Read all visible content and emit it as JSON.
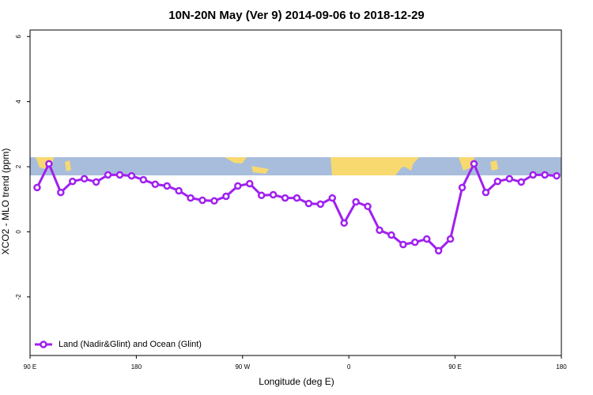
{
  "chart_data": {
    "type": "line",
    "title": "10N-20N May (Ver 9)   2014-09-06 to 2018-12-29",
    "x_label": "Longitude (deg E)",
    "y_label": "XCO2 - MLO trend (ppm)",
    "x": [
      96,
      106,
      116,
      126,
      136,
      146,
      156,
      166,
      176,
      186,
      196,
      206,
      216,
      226,
      236,
      246,
      256,
      266,
      276,
      286,
      296,
      306,
      316,
      326,
      336,
      346,
      356,
      366,
      376,
      386,
      396,
      406,
      416,
      426,
      436,
      446,
      456,
      466,
      476,
      486,
      496,
      506,
      516,
      526,
      536
    ],
    "series": [
      {
        "name": "Land (Nadir&Glint) and Ocean (Glint)",
        "color": "#a020f0",
        "values": [
          1.36,
          2.09,
          1.21,
          1.55,
          1.63,
          1.53,
          1.75,
          1.75,
          1.72,
          1.6,
          1.46,
          1.41,
          1.26,
          1.04,
          0.97,
          0.95,
          1.09,
          1.41,
          1.48,
          1.12,
          1.14,
          1.04,
          1.04,
          0.87,
          0.85,
          1.04,
          0.27,
          0.92,
          0.78,
          0.05,
          -0.1,
          -0.39,
          -0.32,
          -0.22,
          -0.58,
          -0.22,
          1.36,
          2.09,
          1.21,
          1.55,
          1.63,
          1.53,
          1.75,
          1.75,
          1.72
        ]
      }
    ],
    "xlim": [
      90,
      540
    ],
    "xticks": [
      {
        "value": 90,
        "label": "90 E"
      },
      180,
      {
        "value": 270,
        "label": "90 W"
      },
      {
        "value": 360,
        "label": "0"
      },
      {
        "value": 450,
        "label": "90 E"
      },
      {
        "value": 540,
        "label": "180"
      }
    ],
    "ylim": [
      -3.8,
      6.2
    ],
    "yticks": [
      -2,
      0,
      2,
      4,
      6
    ],
    "legend": "bottom-left"
  }
}
